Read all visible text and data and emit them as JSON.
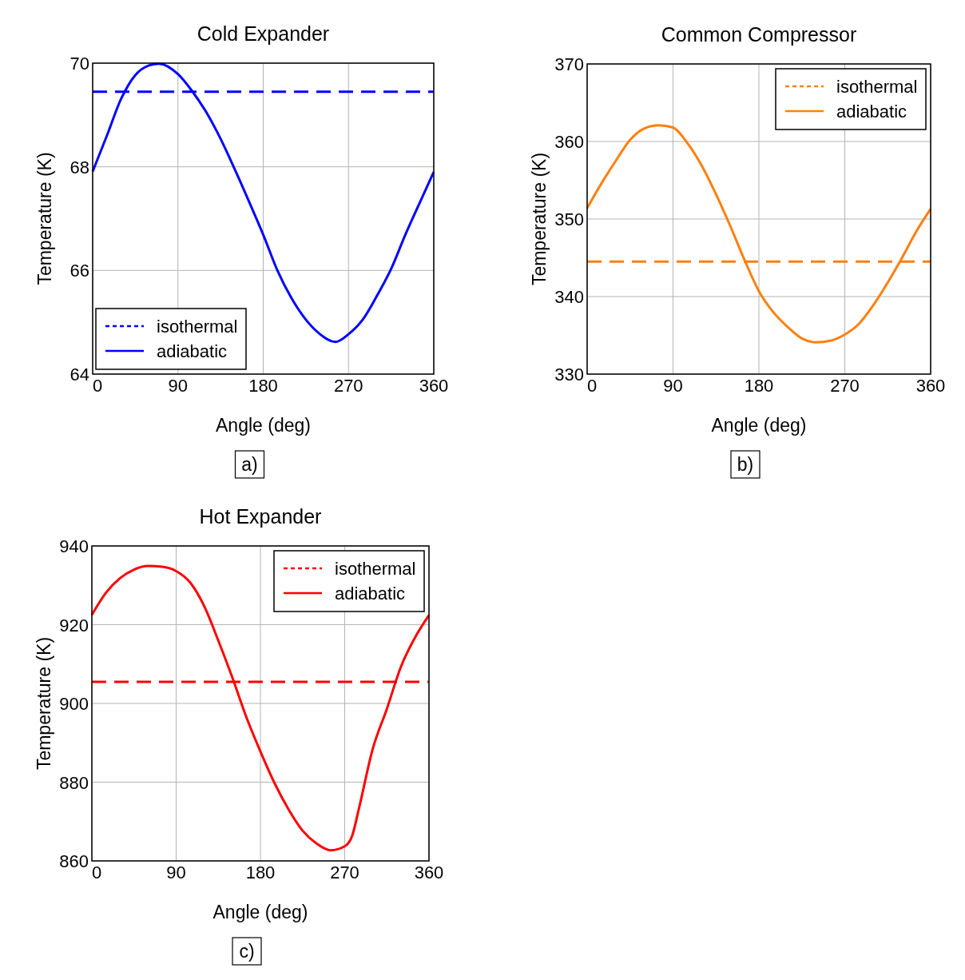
{
  "chart_data": [
    {
      "type": "line",
      "title": "Cold Expander",
      "xlabel": "Angle (deg)",
      "ylabel": "Temperature (K)",
      "annotations": [
        "a)"
      ],
      "xlim": [
        0,
        360
      ],
      "xticks": [
        0,
        90,
        180,
        270,
        360
      ],
      "ylim": [
        64,
        70
      ],
      "yticks": [
        64,
        66,
        68,
        70
      ],
      "grid": true,
      "legend": "bottom left",
      "series": [
        {
          "name": "isothermal",
          "color": "#0000ff",
          "line_style": "dashed",
          "x": [
            0,
            360
          ],
          "values": [
            69.45,
            69.45
          ]
        },
        {
          "name": "adiabatic",
          "color": "#0000ff",
          "line_style": "solid",
          "x": [
            0,
            15,
            30,
            45,
            60,
            70,
            90,
            105,
            120,
            135,
            150,
            165,
            180,
            195,
            210,
            225,
            240,
            256,
            270,
            285,
            300,
            315,
            330,
            345,
            360
          ],
          "values": [
            67.91,
            68.6,
            69.31,
            69.77,
            69.96,
            69.99,
            69.79,
            69.46,
            69.05,
            68.54,
            67.95,
            67.33,
            66.69,
            66.0,
            65.46,
            65.05,
            64.77,
            64.62,
            64.77,
            65.05,
            65.51,
            66.03,
            66.69,
            67.3,
            67.9
          ]
        }
      ]
    },
    {
      "type": "line",
      "title": "Common Compressor",
      "xlabel": "Angle (deg)",
      "ylabel": "Temperature (K)",
      "annotations": [
        "b)"
      ],
      "xlim": [
        0,
        360
      ],
      "xticks": [
        0,
        90,
        180,
        270,
        360
      ],
      "ylim": [
        330,
        370
      ],
      "yticks": [
        330,
        340,
        350,
        360,
        370
      ],
      "grid": true,
      "legend": "top right",
      "series": [
        {
          "name": "isothermal",
          "color": "#ff7f0e",
          "line_style": "dashed",
          "x": [
            0,
            360
          ],
          "values": [
            344.5,
            344.5
          ]
        },
        {
          "name": "adiabatic",
          "color": "#ff7f0e",
          "line_style": "solid",
          "x": [
            0,
            15,
            30,
            45,
            60,
            75,
            90,
            105,
            120,
            135,
            150,
            165,
            180,
            195,
            210,
            225,
            240,
            255,
            270,
            285,
            300,
            315,
            330,
            345,
            360
          ],
          "values": [
            351.4,
            354.6,
            357.5,
            360.2,
            361.7,
            362.1,
            361.8,
            359.8,
            356.9,
            353.2,
            349.1,
            344.7,
            340.7,
            338.0,
            336.1,
            334.6,
            334.1,
            334.3,
            335.1,
            336.5,
            338.9,
            341.8,
            345.0,
            348.4,
            351.3
          ]
        }
      ]
    },
    {
      "type": "line",
      "title": "Hot Expander",
      "xlabel": "Angle (deg)",
      "ylabel": "Temperature (K)",
      "annotations": [
        "c)"
      ],
      "xlim": [
        0,
        360
      ],
      "xticks": [
        0,
        90,
        180,
        270,
        360
      ],
      "ylim": [
        860,
        940
      ],
      "yticks": [
        860,
        880,
        900,
        920,
        940
      ],
      "grid": true,
      "legend": "top right",
      "series": [
        {
          "name": "isothermal",
          "color": "#ff0000",
          "line_style": "dashed",
          "x": [
            0,
            360
          ],
          "values": [
            905.5,
            905.5
          ]
        },
        {
          "name": "adiabatic",
          "color": "#ff0000",
          "line_style": "solid",
          "x": [
            0,
            15,
            30,
            45,
            60,
            75,
            90,
            105,
            120,
            135,
            150,
            165,
            180,
            195,
            210,
            225,
            240,
            255,
            270,
            278,
            285,
            300,
            315,
            330,
            345,
            360
          ],
          "values": [
            922.5,
            928.1,
            931.8,
            934.0,
            934.9,
            934.7,
            933.6,
            930.7,
            924.7,
            916.0,
            906.6,
            896.5,
            887.8,
            879.8,
            873.1,
            867.7,
            864.4,
            862.7,
            863.7,
            866.4,
            873.1,
            888.5,
            898.6,
            909.3,
            916.7,
            922.4
          ]
        }
      ]
    }
  ]
}
